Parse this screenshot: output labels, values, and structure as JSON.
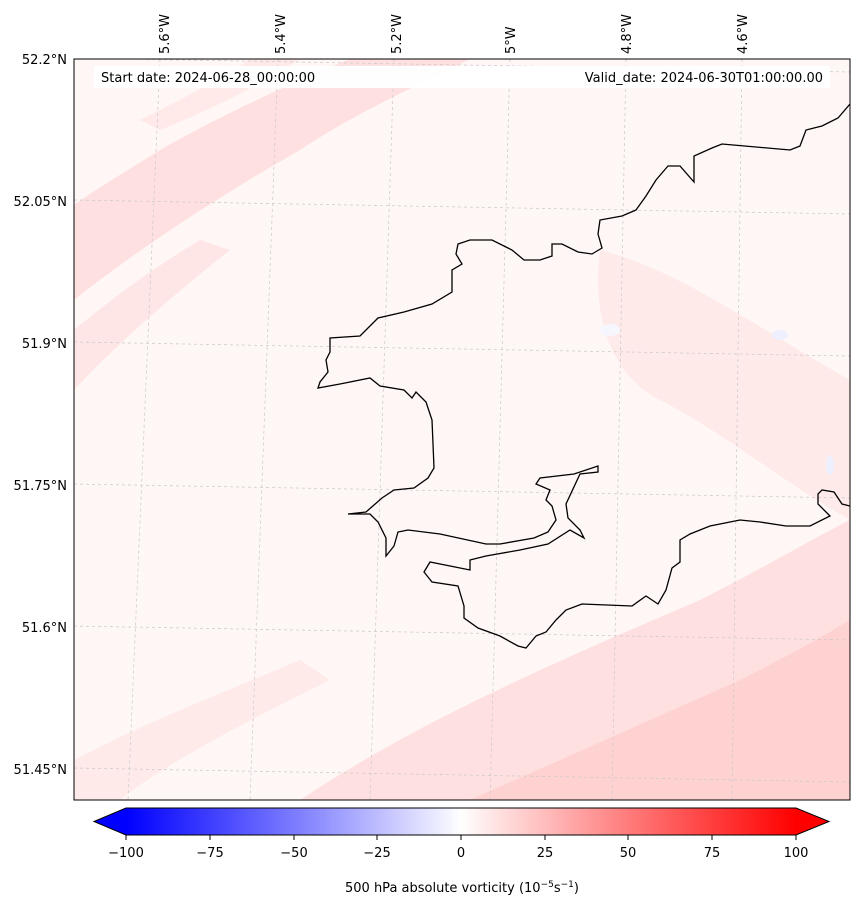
{
  "map": {
    "start_date": "Start date: 2024-06-28_00:00:00",
    "valid_date": "Valid_date: 2024-06-30T01:00:00.00",
    "lon_labels": [
      "5.6°W",
      "5.4°W",
      "5.2°W",
      "5°W",
      "4.8°W",
      "4.6°W"
    ],
    "lat_labels": [
      "52.2°N",
      "52.05°N",
      "51.9°N",
      "51.75°N",
      "51.6°N",
      "51.45°N"
    ],
    "gridlines": true,
    "coastline_color": "#000000"
  },
  "colorbar": {
    "ticks": [
      "−100",
      "−75",
      "−50",
      "−25",
      "0",
      "25",
      "50",
      "75",
      "100"
    ],
    "range": [
      -100,
      100
    ],
    "label": "500 hPa absolute vorticity (10",
    "label_exp1": "−5",
    "label_mid": "s",
    "label_exp2": "−1",
    "label_end": ")",
    "negative_color": "#0000ff",
    "positive_color": "#ff0000",
    "extend": "both"
  }
}
